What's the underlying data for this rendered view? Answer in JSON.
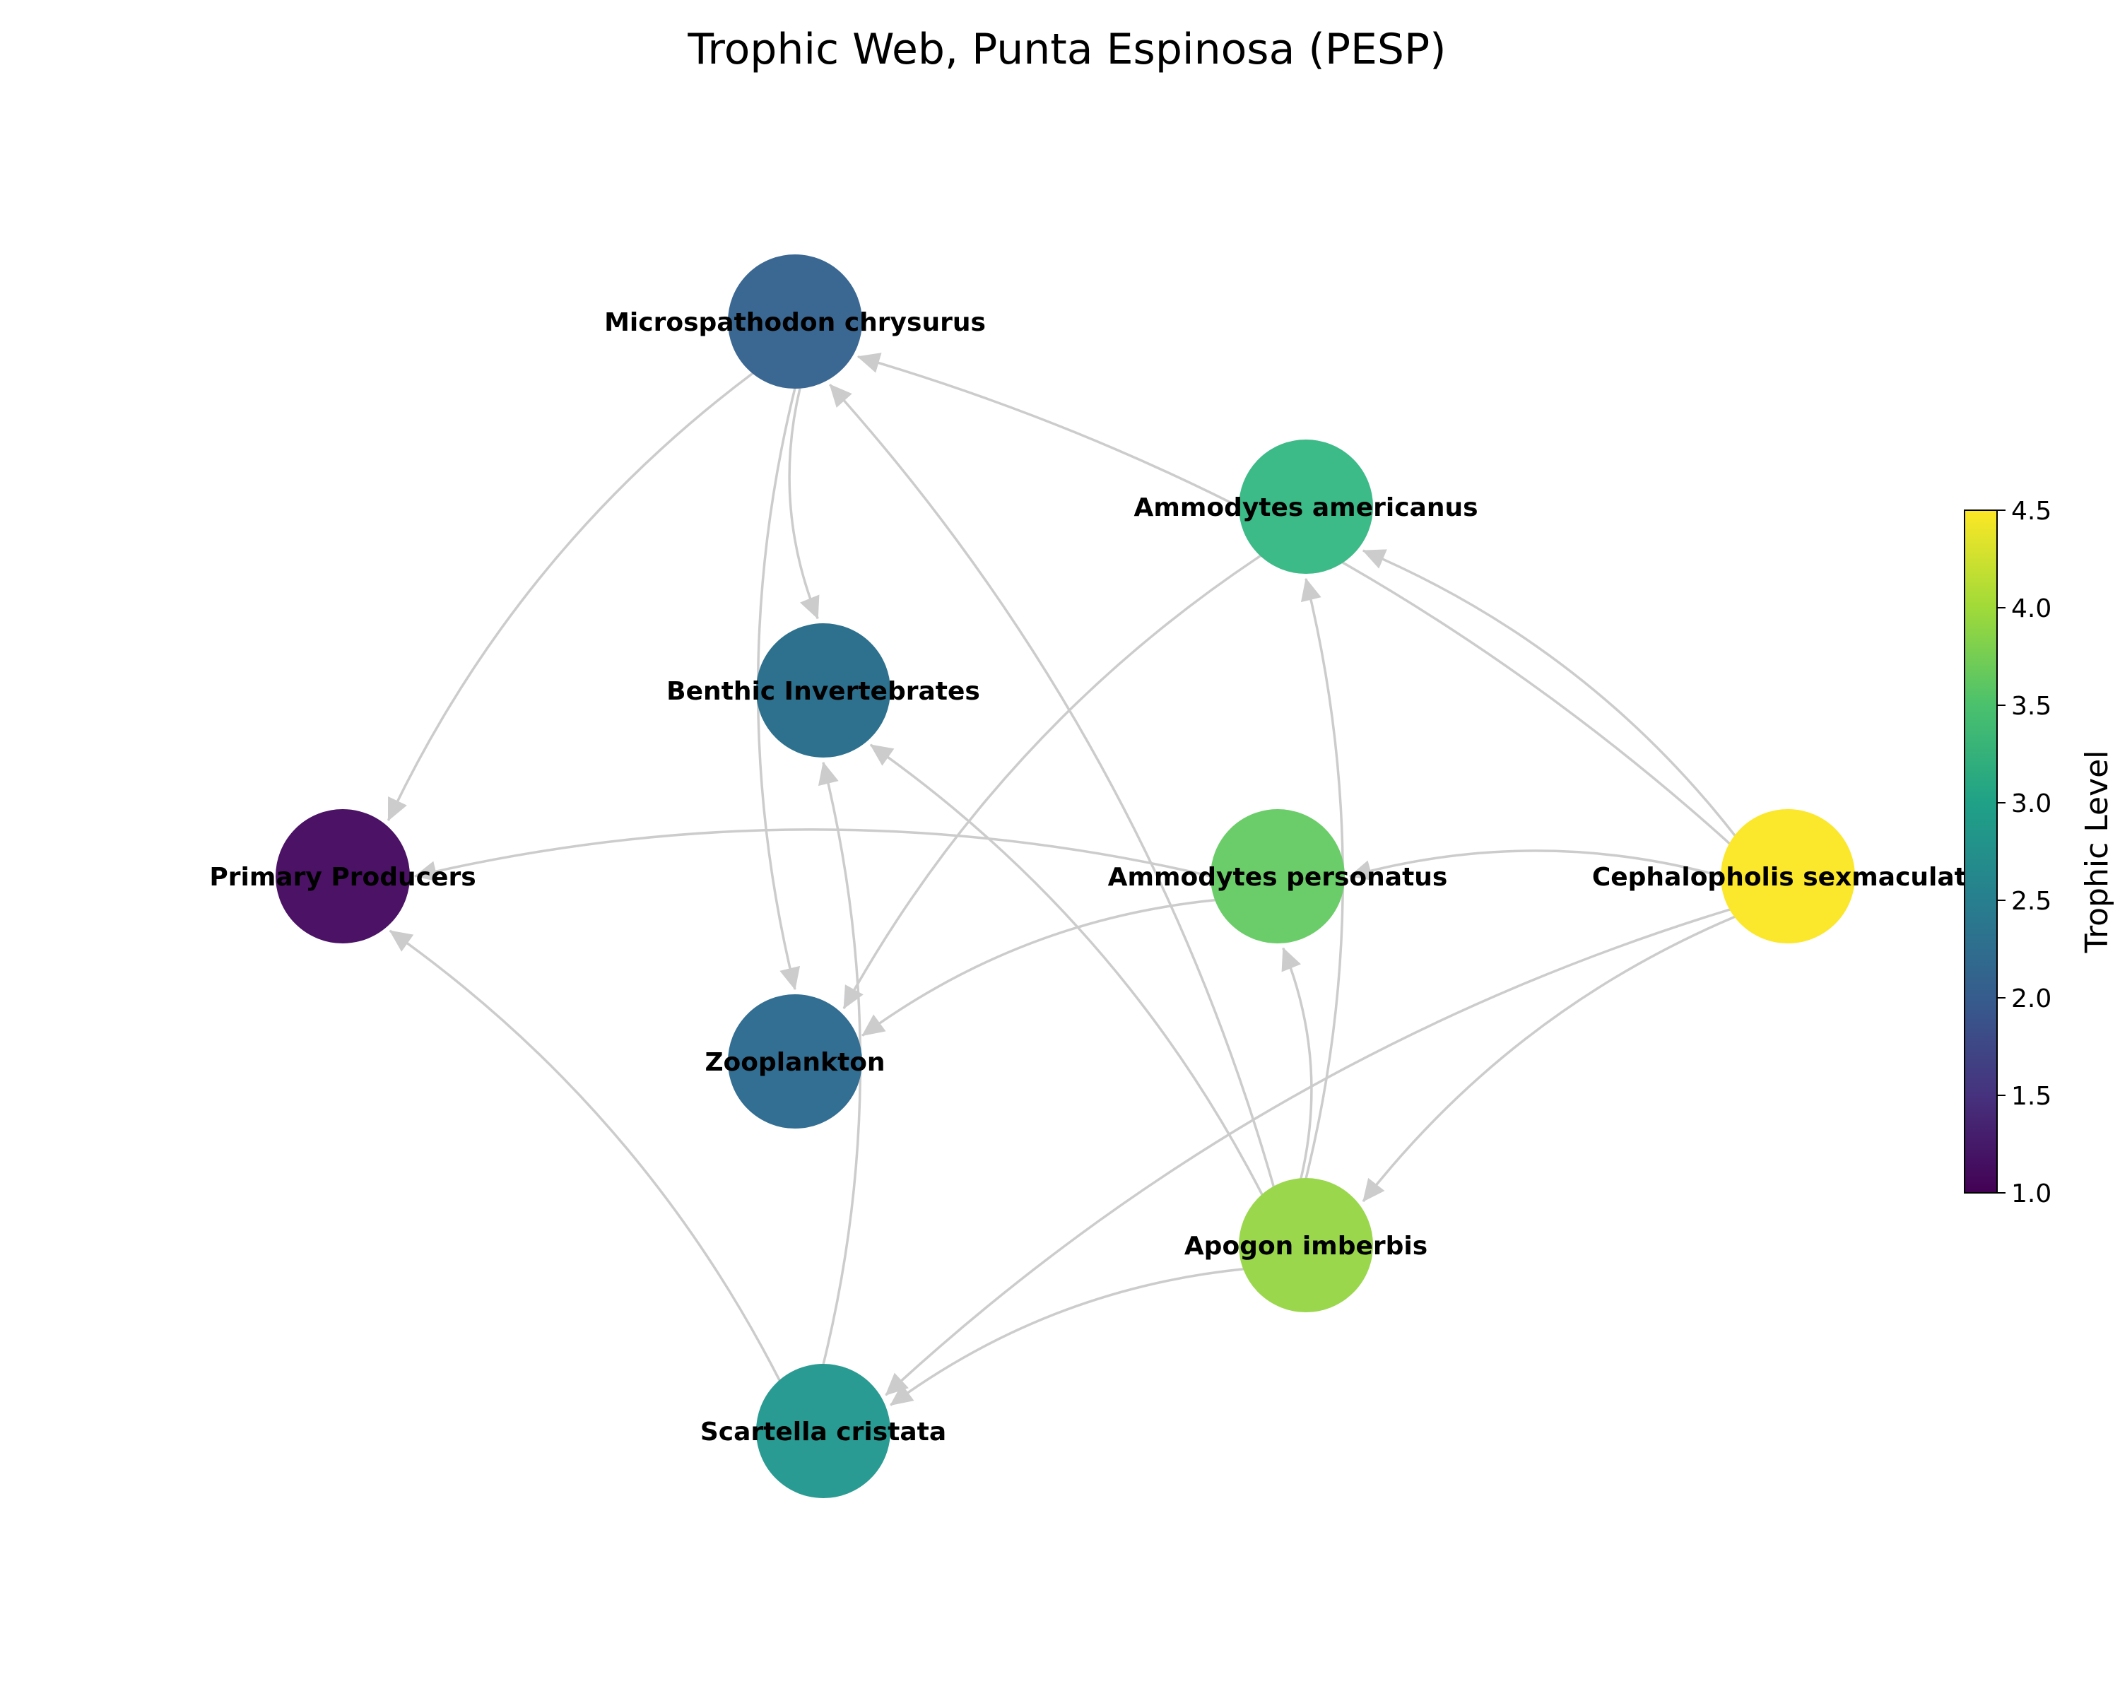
{
  "title": "Trophic Web, Punta Espinosa (PESP)",
  "colorbar": {
    "label": "Trophic Level",
    "min": 1.0,
    "max": 4.5,
    "ticks": [
      "1.0",
      "1.5",
      "2.0",
      "2.5",
      "3.0",
      "3.5",
      "4.0",
      "4.5"
    ],
    "colormap": "viridis"
  },
  "nodes": [
    {
      "id": "microspathodon",
      "label": "Microspathodon chrysurus",
      "trophic_level": 2.0,
      "color": "#3b6893"
    },
    {
      "id": "ammodytes_am",
      "label": "Ammodytes americanus",
      "trophic_level": 3.3,
      "color": "#3cba87"
    },
    {
      "id": "benthic",
      "label": "Benthic Invertebrates",
      "trophic_level": 2.3,
      "color": "#2d718e"
    },
    {
      "id": "primary",
      "label": "Primary Producers",
      "trophic_level": 1.0,
      "color": "#4b1265"
    },
    {
      "id": "ammodytes_pe",
      "label": "Ammodytes personatus",
      "trophic_level": 3.7,
      "color": "#6bcd69"
    },
    {
      "id": "cephalopholis",
      "label": "Cephalopholis sexmaculata",
      "trophic_level": 4.5,
      "color": "#fbe72b"
    },
    {
      "id": "zooplankton",
      "label": "Zooplankton",
      "trophic_level": 2.2,
      "color": "#336e93"
    },
    {
      "id": "apogon",
      "label": "Apogon imberbis",
      "trophic_level": 4.0,
      "color": "#9ad74d"
    },
    {
      "id": "scartella",
      "label": "Scartella cristata",
      "trophic_level": 2.9,
      "color": "#2a9b92"
    }
  ],
  "edges": [
    {
      "source": "microspathodon",
      "target": "primary"
    },
    {
      "source": "microspathodon",
      "target": "benthic"
    },
    {
      "source": "microspathodon",
      "target": "zooplankton"
    },
    {
      "source": "ammodytes_am",
      "target": "zooplankton"
    },
    {
      "source": "ammodytes_pe",
      "target": "primary"
    },
    {
      "source": "ammodytes_pe",
      "target": "zooplankton"
    },
    {
      "source": "cephalopholis",
      "target": "microspathodon"
    },
    {
      "source": "cephalopholis",
      "target": "ammodytes_am"
    },
    {
      "source": "cephalopholis",
      "target": "ammodytes_pe"
    },
    {
      "source": "cephalopholis",
      "target": "apogon"
    },
    {
      "source": "cephalopholis",
      "target": "scartella"
    },
    {
      "source": "apogon",
      "target": "microspathodon"
    },
    {
      "source": "apogon",
      "target": "benthic"
    },
    {
      "source": "apogon",
      "target": "ammodytes_am"
    },
    {
      "source": "apogon",
      "target": "ammodytes_pe"
    },
    {
      "source": "apogon",
      "target": "scartella"
    },
    {
      "source": "scartella",
      "target": "primary"
    },
    {
      "source": "scartella",
      "target": "benthic"
    }
  ]
}
